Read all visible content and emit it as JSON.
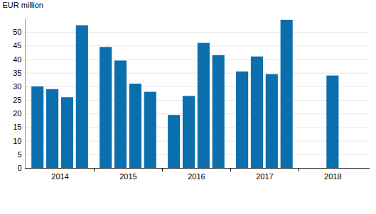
{
  "chart_data": {
    "type": "bar",
    "ylabel": "EUR million",
    "categories": [
      "2014",
      "2015",
      "2016",
      "2017",
      "2018"
    ],
    "values": [
      [
        30,
        29,
        26,
        52.5
      ],
      [
        44.5,
        39.5,
        31,
        28
      ],
      [
        19.5,
        26.5,
        46,
        41.5
      ],
      [
        35.5,
        41,
        34.5,
        54.5
      ],
      [
        34
      ]
    ],
    "color": "#0b6fad",
    "ylim": [
      0,
      55
    ],
    "yticks": [
      0,
      5,
      10,
      15,
      20,
      25,
      30,
      35,
      40,
      45,
      50
    ],
    "grid": true
  }
}
